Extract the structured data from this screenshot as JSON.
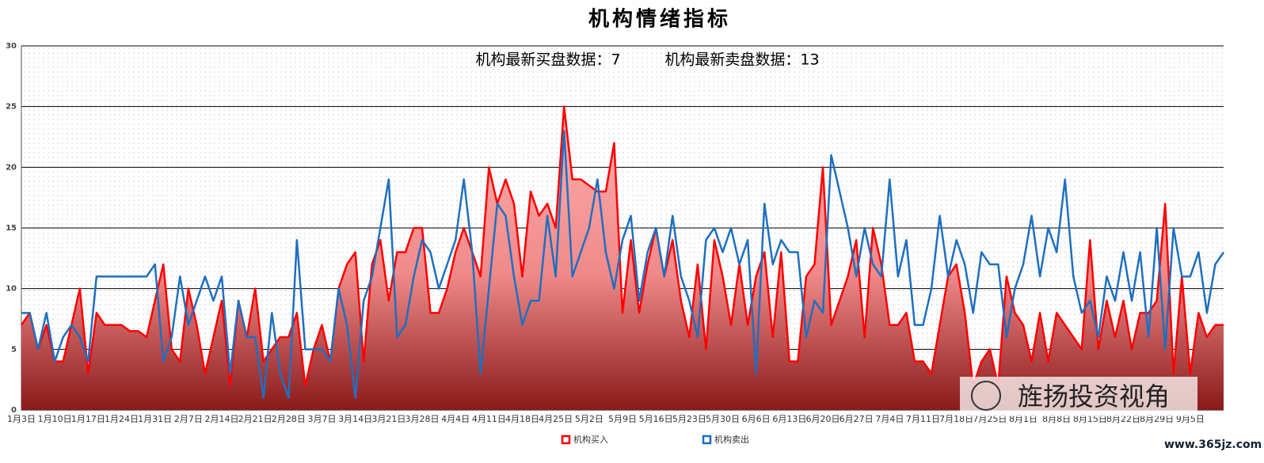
{
  "chart_data": {
    "type": "line-area",
    "title": "机构情绪指标",
    "annotations": [
      "机构最新买盘数据：7",
      "机构最新卖盘数据：13",
      "旌扬投资视角",
      "www.365jz.com"
    ],
    "categories": [
      "1月3日",
      null,
      null,
      null,
      "1月10日",
      null,
      null,
      null,
      "1月17日",
      null,
      null,
      null,
      "1月24日",
      null,
      null,
      null,
      "1月31日",
      null,
      null,
      null,
      "2月7日",
      null,
      null,
      null,
      "2月14日",
      null,
      null,
      null,
      "2月21日",
      null,
      null,
      null,
      "2月28日",
      null,
      null,
      null,
      "3月7日",
      null,
      null,
      null,
      "3月14日",
      null,
      null,
      null,
      "3月21日",
      null,
      null,
      null,
      "3月28日",
      null,
      null,
      null,
      "4月4日",
      null,
      null,
      null,
      "4月11日",
      null,
      null,
      null,
      "4月18日",
      null,
      null,
      null,
      "4月25日",
      null,
      null,
      null,
      "5月2日",
      null,
      null,
      null,
      "5月9日",
      null,
      null,
      null,
      "5月16日",
      null,
      null,
      null,
      "5月23日",
      null,
      null,
      null,
      "5月30日",
      null,
      null,
      null,
      "6月6日",
      null,
      null,
      null,
      "6月13日",
      null,
      null,
      null,
      "6月20日",
      null,
      null,
      null,
      "6月27日",
      null,
      null,
      null,
      "7月4日",
      null,
      null,
      null,
      "7月11日",
      null,
      null,
      null,
      "7月18日",
      null,
      null,
      null,
      "7月25日",
      null,
      null,
      null,
      "8月1日",
      null,
      null,
      null,
      "8月8日",
      null,
      null,
      null,
      "8月15日",
      null,
      null,
      null,
      "8月22日",
      null,
      null,
      null,
      "8月29日",
      null,
      null,
      null,
      "9月5日",
      null,
      null,
      null,
      null
    ],
    "series": [
      {
        "name": "机构买入",
        "color": "#ff0000",
        "area": true,
        "values": [
          7,
          8,
          5,
          7,
          4,
          4,
          7,
          10,
          3,
          8,
          7,
          7,
          7,
          6.5,
          6.5,
          6,
          9,
          12,
          5,
          4,
          10,
          7,
          3,
          6,
          9,
          2,
          9,
          6,
          10,
          4,
          5,
          6,
          6,
          8,
          2,
          5,
          7,
          4,
          10,
          12,
          13,
          4,
          12,
          14,
          9,
          13,
          13,
          15,
          15,
          8,
          8,
          10,
          13,
          15,
          13,
          11,
          20,
          17,
          19,
          17,
          11,
          18,
          16,
          17,
          15,
          25,
          19,
          19,
          18.5,
          18,
          18,
          22,
          8,
          14,
          8,
          12,
          15,
          11,
          14,
          9,
          6,
          12,
          5,
          14,
          11,
          7,
          12,
          7,
          11,
          13,
          6,
          13,
          4,
          4,
          11,
          12,
          20,
          7,
          9,
          11,
          14,
          6,
          15,
          12,
          7,
          7,
          8,
          4,
          4,
          3,
          7,
          11,
          12,
          8,
          2,
          4,
          5,
          2,
          11,
          8,
          7,
          4,
          8,
          4,
          8,
          7,
          6,
          5,
          14,
          5,
          9,
          6,
          9,
          5,
          8,
          8,
          9,
          17,
          3,
          11,
          3,
          8,
          6,
          7,
          7
        ]
      },
      {
        "name": "机构卖出",
        "color": "#1f6fbf",
        "area": false,
        "values": [
          8,
          8,
          5,
          8,
          4,
          6,
          7,
          6,
          4,
          11,
          11,
          11,
          11,
          11,
          11,
          11,
          12,
          4,
          6,
          11,
          7,
          9,
          11,
          9,
          11,
          3,
          9,
          6,
          6,
          1,
          8,
          3,
          1,
          14,
          5,
          5,
          5,
          4,
          10,
          7,
          1,
          9,
          11,
          15,
          19,
          6,
          7,
          11,
          14,
          13,
          10,
          12,
          14,
          19,
          13,
          3,
          10,
          17,
          16,
          11,
          7,
          9,
          9,
          16,
          11,
          23,
          11,
          13,
          15,
          19,
          13,
          10,
          14,
          16,
          9,
          13,
          15,
          11,
          16,
          11,
          9,
          6,
          14,
          15,
          13,
          15,
          12,
          14,
          3,
          17,
          12,
          14,
          13,
          13,
          6,
          9,
          8,
          21,
          18,
          15,
          11,
          15,
          12,
          11,
          19,
          11,
          14,
          7,
          7,
          10,
          16,
          11,
          14,
          12,
          8,
          13,
          12,
          12,
          6,
          10,
          12,
          16,
          11,
          15,
          13,
          19,
          11,
          8,
          9,
          6,
          11,
          9,
          13,
          9,
          13,
          6,
          15,
          5,
          15,
          11,
          11,
          13,
          8,
          12,
          13
        ]
      }
    ],
    "ylim": [
      0,
      30
    ],
    "yticks": [
      0,
      5,
      10,
      15,
      20,
      25,
      30
    ],
    "grid": true,
    "legend": "bottom"
  }
}
